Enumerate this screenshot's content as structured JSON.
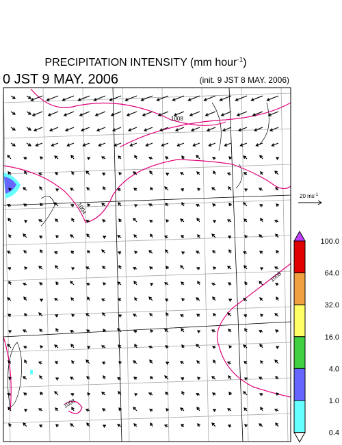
{
  "title": {
    "text": "PRECIPITATION INTENSITY (mm hour",
    "superscript": "-1",
    "close": ")"
  },
  "valid_time": "0 JST 9 MAY. 2006",
  "init_time": "(init. 9 JST 8 MAY. 2006)",
  "wind_scale": {
    "label": "20 ms",
    "superscript": "-1"
  },
  "colorbar": {
    "labels": [
      "100.0",
      "64.0",
      "32.0",
      "16.0",
      "4.0",
      "1.0",
      "0.4"
    ],
    "colors": [
      "#e00000",
      "#f0a040",
      "#ffff66",
      "#40d040",
      "#6666ff",
      "#66ffff"
    ],
    "over_color": "#c040ff",
    "under_color": "#ffffff"
  },
  "contour_labels": [
    "1008",
    "1004",
    "1008",
    "1008"
  ]
}
